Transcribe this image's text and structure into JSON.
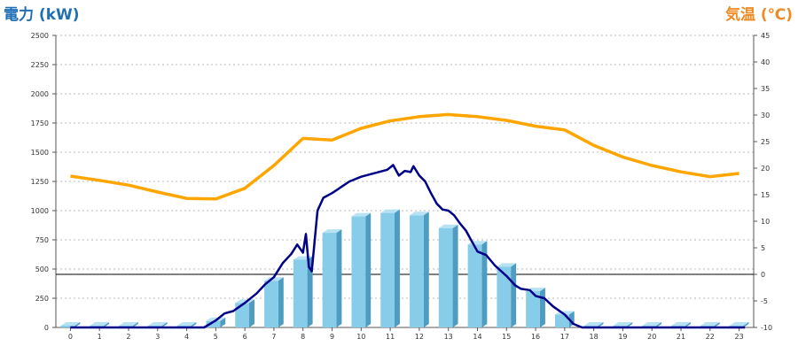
{
  "chart_data": {
    "type": "bar+line",
    "left_axis_label": "電力 (kW)",
    "right_axis_label": "気温 (℃)",
    "left_ylim": [
      0,
      2500
    ],
    "left_ticks": [
      0,
      250,
      500,
      750,
      1000,
      1250,
      1500,
      1750,
      2000,
      2250,
      2500
    ],
    "right_ylim": [
      -10,
      45
    ],
    "right_ticks": [
      -10,
      -5,
      0,
      5,
      10,
      15,
      20,
      25,
      30,
      35,
      40,
      45
    ],
    "categories": [
      "0",
      "1",
      "2",
      "3",
      "4",
      "5",
      "6",
      "7",
      "8",
      "9",
      "10",
      "11",
      "12",
      "13",
      "14",
      "15",
      "16",
      "17",
      "18",
      "19",
      "20",
      "21",
      "22",
      "23"
    ],
    "grid": "horizontal-dotted",
    "reference_line": {
      "axis": "right",
      "value": 0
    },
    "colors": {
      "bar_face": "#87cdea",
      "bar_side": "#4e9cc0",
      "bar_top": "#b6e2f4",
      "power_line": "#000088",
      "temperature_line": "#ffa500",
      "left_label": "#1f6fb5",
      "right_label": "#ef8a24"
    },
    "series": [
      {
        "type": "bar",
        "axis": "left",
        "values": [
          0,
          0,
          0,
          0,
          0,
          55,
          210,
          400,
          580,
          810,
          950,
          980,
          960,
          850,
          710,
          520,
          310,
          110,
          0,
          0,
          0,
          0,
          0,
          0
        ]
      },
      {
        "type": "line",
        "axis": "left",
        "x": [
          0,
          4.6,
          5.0,
          5.3,
          5.6,
          6.0,
          6.4,
          6.7,
          7.0,
          7.3,
          7.6,
          7.8,
          8.0,
          8.1,
          8.2,
          8.3,
          8.5,
          8.7,
          9.0,
          9.3,
          9.6,
          10.0,
          10.3,
          10.6,
          10.9,
          11.1,
          11.3,
          11.5,
          11.7,
          11.8,
          12.0,
          12.2,
          12.4,
          12.6,
          12.8,
          13.0,
          13.2,
          13.4,
          13.6,
          13.8,
          14.0,
          14.3,
          14.6,
          15.0,
          15.3,
          15.5,
          15.8,
          16.0,
          16.3,
          16.6,
          17.0,
          17.3,
          17.6,
          23.2
        ],
        "y": [
          0,
          0,
          60,
          120,
          140,
          210,
          290,
          370,
          430,
          550,
          630,
          710,
          640,
          800,
          520,
          480,
          1000,
          1110,
          1150,
          1200,
          1250,
          1290,
          1310,
          1330,
          1350,
          1390,
          1300,
          1340,
          1330,
          1380,
          1300,
          1250,
          1150,
          1060,
          1010,
          1000,
          960,
          890,
          830,
          740,
          650,
          620,
          530,
          440,
          360,
          330,
          320,
          270,
          250,
          180,
          110,
          30,
          0,
          0
        ]
      },
      {
        "type": "line",
        "axis": "right",
        "values": [
          18.5,
          17.7,
          16.8,
          15.5,
          14.3,
          14.2,
          16.2,
          20.5,
          25.6,
          25.3,
          27.5,
          28.9,
          29.7,
          30.1,
          29.7,
          29.0,
          27.9,
          27.2,
          24.3,
          22.1,
          20.5,
          19.3,
          18.4,
          19.0
        ]
      }
    ]
  }
}
